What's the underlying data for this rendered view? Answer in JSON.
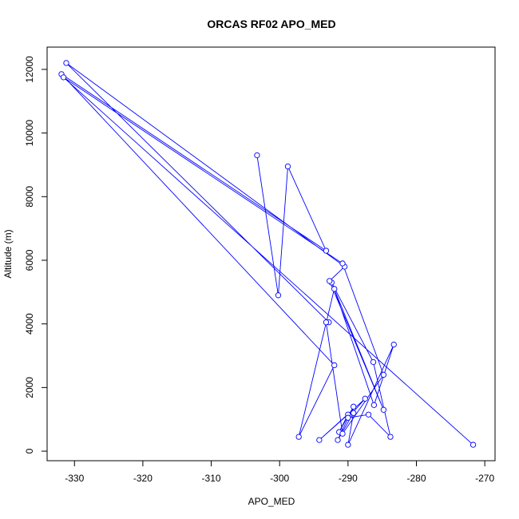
{
  "chart_data": {
    "type": "line",
    "title": "ORCAS RF02 APO_MED",
    "xlabel": "APO_MED",
    "ylabel": "Altitude (m)",
    "xlim": [
      -334,
      -268.5
    ],
    "ylim": [
      -300,
      12700
    ],
    "x_ticks": [
      -330,
      -320,
      -310,
      -300,
      -290,
      -280,
      -270
    ],
    "y_ticks": [
      0,
      2000,
      4000,
      6000,
      8000,
      10000,
      12000
    ],
    "grid": false,
    "legend": "none",
    "series": [
      {
        "color": "#0000ff",
        "marker": "open-circle",
        "points": [
          {
            "x": -303.3,
            "y": 9300
          },
          {
            "x": -300.2,
            "y": 4900
          },
          {
            "x": -298.8,
            "y": 8950
          },
          {
            "x": -293.2,
            "y": 6300
          },
          {
            "x": -331.9,
            "y": 11850
          },
          {
            "x": -292.0,
            "y": 2700
          },
          {
            "x": -297.2,
            "y": 450
          },
          {
            "x": -292.0,
            "y": 5100
          },
          {
            "x": -286.2,
            "y": 1450
          },
          {
            "x": -283.3,
            "y": 3350
          },
          {
            "x": -290.0,
            "y": 200
          },
          {
            "x": -289.2,
            "y": 1200
          },
          {
            "x": -291.5,
            "y": 350
          },
          {
            "x": -289.2,
            "y": 1400
          },
          {
            "x": -291.3,
            "y": 600
          },
          {
            "x": -290.0,
            "y": 1150
          },
          {
            "x": -294.2,
            "y": 350
          },
          {
            "x": -287.5,
            "y": 1650
          },
          {
            "x": -290.0,
            "y": 1050
          },
          {
            "x": -287.0,
            "y": 1150
          },
          {
            "x": -283.8,
            "y": 450
          },
          {
            "x": -286.3,
            "y": 2800
          },
          {
            "x": -292.4,
            "y": 5300
          },
          {
            "x": -284.8,
            "y": 1300
          },
          {
            "x": -292.7,
            "y": 5350
          },
          {
            "x": -290.5,
            "y": 5800
          },
          {
            "x": -331.2,
            "y": 12200
          },
          {
            "x": -292.8,
            "y": 4050
          },
          {
            "x": -293.2,
            "y": 4050
          },
          {
            "x": -290.8,
            "y": 550
          },
          {
            "x": -284.8,
            "y": 2400
          },
          {
            "x": -290.8,
            "y": 5900
          },
          {
            "x": -331.6,
            "y": 11750
          },
          {
            "x": -271.7,
            "y": 200
          }
        ]
      }
    ]
  }
}
